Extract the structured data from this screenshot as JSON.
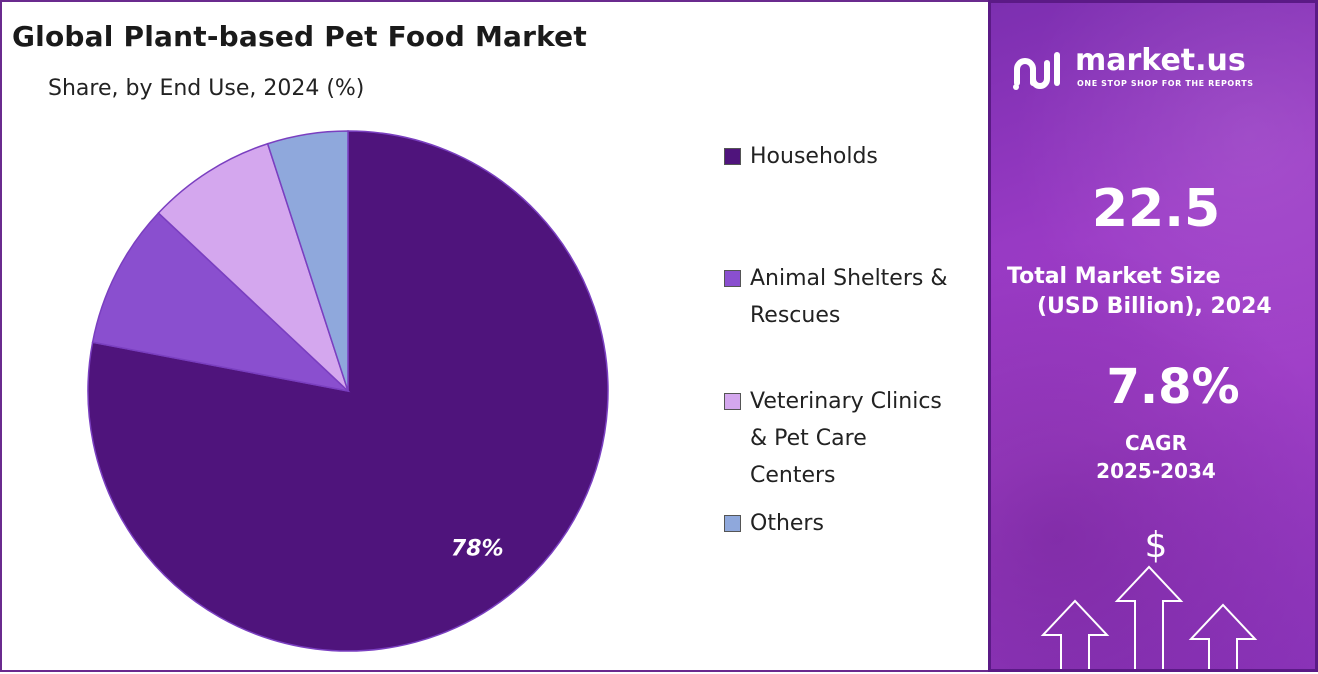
{
  "title": "Global Plant-based Pet Food Market",
  "subtitle": "Share, by End Use, 2024 (%)",
  "chart_data": {
    "type": "pie",
    "title": "Global Plant-based Pet Food Market",
    "subtitle": "Share, by End Use, 2024 (%)",
    "categories": [
      "Households",
      "Animal Shelters & Rescues",
      "Veterinary Clinics & Pet Care Centers",
      "Others"
    ],
    "values": [
      78,
      9,
      8,
      5
    ],
    "colors": [
      "#4f147c",
      "#8a4fcf",
      "#d4a7ee",
      "#8fa8dc"
    ],
    "data_labels": [
      "78%",
      "",
      "",
      ""
    ],
    "legend_position": "right"
  },
  "legend": [
    {
      "lines": [
        "Households"
      ],
      "color": "#4f147c"
    },
    {
      "lines": [
        "Animal Shelters &",
        "Rescues"
      ],
      "color": "#8a4fcf"
    },
    {
      "lines": [
        "Veterinary Clinics",
        "& Pet Care",
        "Centers"
      ],
      "color": "#d4a7ee"
    },
    {
      "lines": [
        "Others"
      ],
      "color": "#8fa8dc"
    }
  ],
  "brand": {
    "name": "market.us",
    "tagline": "ONE STOP SHOP FOR THE REPORTS",
    "logo_icon": "market-us-logo-icon"
  },
  "stats": {
    "market_size_value": "22.5",
    "market_size_label_1": "Total Market Size",
    "market_size_label_2": "(USD Billion), 2024",
    "cagr_value": "7.8%",
    "cagr_label_1": "CAGR",
    "cagr_label_2": "2025-2034"
  },
  "decor": {
    "dollar_symbol": "$",
    "arrow_icon": "arrow-up-outline-icon"
  }
}
